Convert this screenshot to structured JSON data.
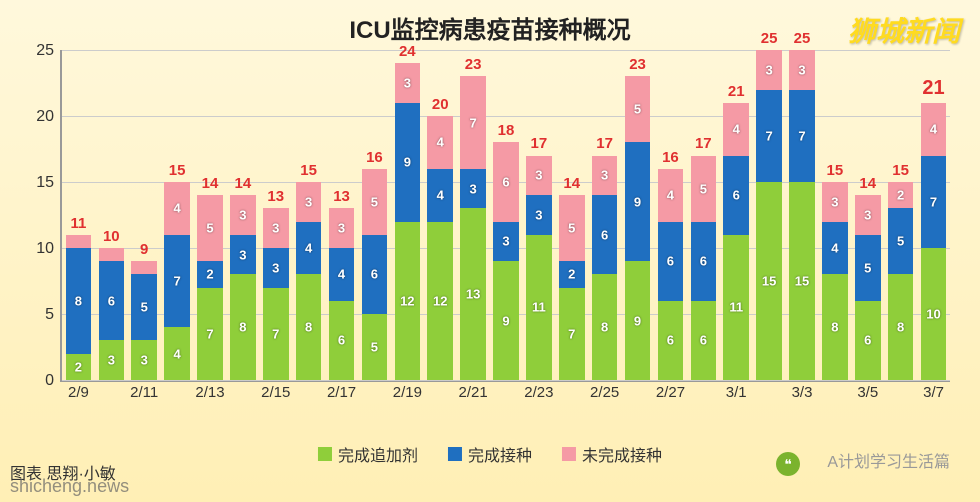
{
  "title": "ICU监控病患疫苗接种概况",
  "watermarks": {
    "top_right": "狮城新闻",
    "bottom_right": "A计划学习生活篇",
    "bottom_left": "shicheng.news",
    "credit": "图表    思翔·小敏"
  },
  "colors": {
    "booster": "#8fce3a",
    "full": "#1f6fc0",
    "partial": "#f59aa5",
    "total_label": "#e03030",
    "grid": "#cccccc",
    "axis": "#999999"
  },
  "y_axis": {
    "min": 0,
    "max": 25,
    "step": 5
  },
  "last_emphasis": true,
  "legend": [
    {
      "label": "完成追加剂",
      "color_key": "booster"
    },
    {
      "label": "完成接种",
      "color_key": "full"
    },
    {
      "label": "未完成接种",
      "color_key": "partial"
    }
  ],
  "categories": [
    "2/9",
    "",
    "2/11",
    "",
    "2/13",
    "",
    "2/15",
    "",
    "2/17",
    "",
    "2/19",
    "",
    "2/21",
    "",
    "2/23",
    "",
    "2/25",
    "",
    "2/27",
    "",
    "3/1",
    "",
    "3/3",
    "",
    "3/5",
    "",
    "3/7"
  ],
  "data": [
    {
      "booster": 2,
      "full": 8,
      "partial": 1,
      "total": 11
    },
    {
      "booster": 3,
      "full": 6,
      "partial": 1,
      "total": 10
    },
    {
      "booster": 3,
      "full": 5,
      "partial": 1,
      "total": 9
    },
    {
      "booster": 4,
      "full": 7,
      "partial": 4,
      "total": 15
    },
    {
      "booster": 7,
      "full": 2,
      "partial": 5,
      "total": 14
    },
    {
      "booster": 8,
      "full": 3,
      "partial": 3,
      "total": 14
    },
    {
      "booster": 7,
      "full": 3,
      "partial": 3,
      "total": 13
    },
    {
      "booster": 8,
      "full": 4,
      "partial": 3,
      "total": 15
    },
    {
      "booster": 6,
      "full": 4,
      "partial": 3,
      "total": 13
    },
    {
      "booster": 5,
      "full": 6,
      "partial": 5,
      "total": 16
    },
    {
      "booster": 12,
      "full": 9,
      "partial": 3,
      "total": 24
    },
    {
      "booster": 12,
      "full": 4,
      "partial": 4,
      "total": 20
    },
    {
      "booster": 13,
      "full": 3,
      "partial": 7,
      "total": 23
    },
    {
      "booster": 9,
      "full": 3,
      "partial": 6,
      "total": 18
    },
    {
      "booster": 11,
      "full": 3,
      "partial": 3,
      "total": 17
    },
    {
      "booster": 7,
      "full": 2,
      "partial": 5,
      "total": 14
    },
    {
      "booster": 8,
      "full": 6,
      "partial": 3,
      "total": 17
    },
    {
      "booster": 9,
      "full": 9,
      "partial": 5,
      "total": 23
    },
    {
      "booster": 6,
      "full": 6,
      "partial": 4,
      "total": 16
    },
    {
      "booster": 6,
      "full": 6,
      "partial": 5,
      "total": 17
    },
    {
      "booster": 11,
      "full": 6,
      "partial": 4,
      "total": 21
    },
    {
      "booster": 15,
      "full": 7,
      "partial": 3,
      "total": 25
    },
    {
      "booster": 15,
      "full": 7,
      "partial": 3,
      "total": 25
    },
    {
      "booster": 8,
      "full": 4,
      "partial": 3,
      "total": 15
    },
    {
      "booster": 6,
      "full": 5,
      "partial": 3,
      "total": 14
    },
    {
      "booster": 8,
      "full": 5,
      "partial": 2,
      "total": 15
    },
    {
      "booster": 10,
      "full": 7,
      "partial": 4,
      "total": 21
    }
  ]
}
